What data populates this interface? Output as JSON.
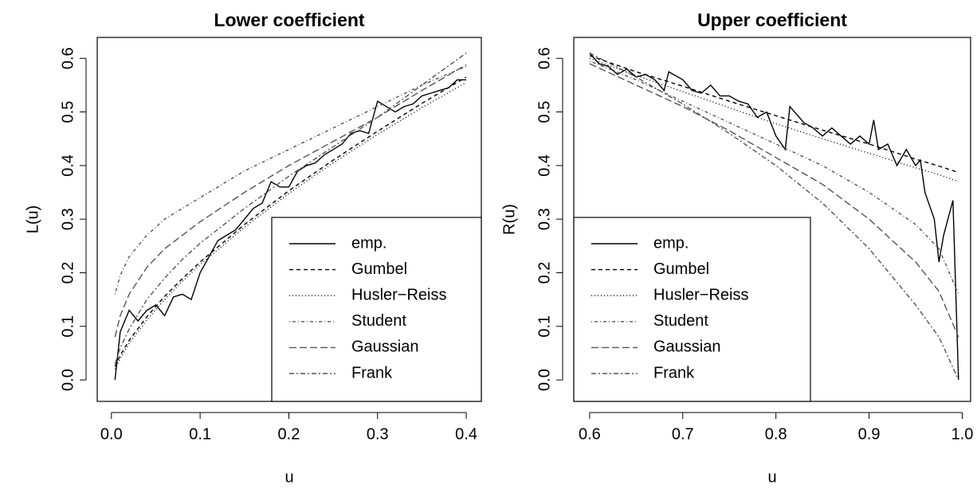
{
  "chart_data": [
    {
      "type": "line",
      "title": "Lower coefficient",
      "x_label": "u",
      "y_label": "L(u)",
      "xlim": [
        -0.016,
        0.417
      ],
      "ylim": [
        -0.04,
        0.639
      ],
      "xticks": [
        {
          "value": 0,
          "label": "0.0"
        },
        0.1,
        0.2,
        0.3,
        0.4
      ],
      "yticks": [
        {
          "value": 0,
          "label": "0.0"
        },
        0.1,
        0.2,
        0.3,
        0.4,
        0.5,
        0.6
      ],
      "legend": "bottomright",
      "series": [
        {
          "name": "emp.",
          "color": "#000000",
          "dash": "none",
          "x": [
            0.004,
            0.01,
            0.02,
            0.03,
            0.04,
            0.05,
            0.06,
            0.07,
            0.08,
            0.09,
            0.1,
            0.11,
            0.12,
            0.13,
            0.14,
            0.15,
            0.16,
            0.17,
            0.18,
            0.19,
            0.2,
            0.21,
            0.22,
            0.23,
            0.24,
            0.25,
            0.26,
            0.27,
            0.28,
            0.29,
            0.3,
            0.31,
            0.32,
            0.33,
            0.34,
            0.35,
            0.36,
            0.37,
            0.38,
            0.39,
            0.4
          ],
          "values": [
            0.0,
            0.09,
            0.13,
            0.11,
            0.13,
            0.14,
            0.12,
            0.155,
            0.16,
            0.15,
            0.2,
            0.23,
            0.26,
            0.27,
            0.28,
            0.3,
            0.32,
            0.33,
            0.37,
            0.36,
            0.36,
            0.39,
            0.4,
            0.405,
            0.42,
            0.43,
            0.44,
            0.46,
            0.465,
            0.46,
            0.52,
            0.51,
            0.5,
            0.51,
            0.515,
            0.53,
            0.535,
            0.54,
            0.545,
            0.56,
            0.56
          ]
        },
        {
          "name": "Gumbel",
          "color": "#000000",
          "dash": "5,4",
          "x": [
            0.004,
            0.01,
            0.02,
            0.04,
            0.06,
            0.08,
            0.1,
            0.15,
            0.2,
            0.25,
            0.3,
            0.35,
            0.4
          ],
          "values": [
            0.025,
            0.046,
            0.074,
            0.118,
            0.156,
            0.189,
            0.22,
            0.29,
            0.353,
            0.41,
            0.464,
            0.516,
            0.565
          ]
        },
        {
          "name": "Husler−Reiss",
          "color": "#000000",
          "dash": "1,3",
          "x": [
            0.004,
            0.01,
            0.02,
            0.04,
            0.06,
            0.08,
            0.1,
            0.15,
            0.2,
            0.25,
            0.3,
            0.35,
            0.4
          ],
          "values": [
            0.02,
            0.04,
            0.068,
            0.112,
            0.15,
            0.184,
            0.215,
            0.285,
            0.348,
            0.405,
            0.458,
            0.508,
            0.555
          ]
        },
        {
          "name": "Student",
          "color": "#555555",
          "dash": "1,3,4,3",
          "x": [
            0.004,
            0.01,
            0.02,
            0.04,
            0.06,
            0.08,
            0.1,
            0.15,
            0.2,
            0.25,
            0.3,
            0.35,
            0.4
          ],
          "values": [
            0.16,
            0.195,
            0.23,
            0.27,
            0.3,
            0.32,
            0.34,
            0.39,
            0.43,
            0.47,
            0.51,
            0.55,
            0.585
          ]
        },
        {
          "name": "Gaussian",
          "color": "#555555",
          "dash": "9,4",
          "x": [
            0.004,
            0.01,
            0.02,
            0.04,
            0.06,
            0.08,
            0.1,
            0.15,
            0.2,
            0.25,
            0.3,
            0.35,
            0.4
          ],
          "values": [
            0.08,
            0.12,
            0.16,
            0.21,
            0.245,
            0.27,
            0.295,
            0.35,
            0.4,
            0.445,
            0.49,
            0.54,
            0.588
          ]
        },
        {
          "name": "Frank",
          "color": "#555555",
          "dash": "6,3,2,3",
          "x": [
            0.004,
            0.01,
            0.02,
            0.04,
            0.06,
            0.08,
            0.1,
            0.15,
            0.2,
            0.25,
            0.3,
            0.35,
            0.4
          ],
          "values": [
            0.03,
            0.06,
            0.095,
            0.15,
            0.19,
            0.225,
            0.255,
            0.32,
            0.38,
            0.435,
            0.49,
            0.55,
            0.61
          ]
        }
      ]
    },
    {
      "type": "line",
      "title": "Upper coefficient",
      "x_label": "u",
      "y_label": "R(u)",
      "xlim": [
        0.583,
        1.009
      ],
      "ylim": [
        -0.04,
        0.639
      ],
      "xticks": [
        0.6,
        0.7,
        0.8,
        0.9,
        {
          "value": 1,
          "label": "1.0"
        }
      ],
      "yticks": [
        {
          "value": 0,
          "label": "0.0"
        },
        0.1,
        0.2,
        0.3,
        0.4,
        0.5,
        0.6
      ],
      "legend": "bottomleft",
      "series": [
        {
          "name": "emp.",
          "color": "#000000",
          "dash": "none",
          "x": [
            0.6,
            0.61,
            0.62,
            0.63,
            0.64,
            0.65,
            0.66,
            0.67,
            0.68,
            0.685,
            0.7,
            0.71,
            0.72,
            0.73,
            0.74,
            0.75,
            0.76,
            0.77,
            0.78,
            0.79,
            0.8,
            0.81,
            0.815,
            0.83,
            0.84,
            0.85,
            0.86,
            0.87,
            0.88,
            0.89,
            0.9,
            0.905,
            0.91,
            0.92,
            0.93,
            0.94,
            0.95,
            0.955,
            0.96,
            0.97,
            0.975,
            0.98,
            0.99,
            0.996
          ],
          "values": [
            0.61,
            0.59,
            0.585,
            0.57,
            0.58,
            0.565,
            0.57,
            0.56,
            0.54,
            0.575,
            0.56,
            0.54,
            0.535,
            0.55,
            0.53,
            0.53,
            0.52,
            0.515,
            0.49,
            0.5,
            0.455,
            0.43,
            0.51,
            0.48,
            0.47,
            0.455,
            0.47,
            0.455,
            0.44,
            0.455,
            0.44,
            0.485,
            0.43,
            0.44,
            0.4,
            0.43,
            0.4,
            0.41,
            0.35,
            0.3,
            0.22,
            0.27,
            0.335,
            0.0
          ]
        },
        {
          "name": "Gumbel",
          "color": "#000000",
          "dash": "5,4",
          "x": [
            0.6,
            0.65,
            0.7,
            0.75,
            0.8,
            0.85,
            0.9,
            0.95,
            0.975,
            0.996
          ],
          "values": [
            0.605,
            0.575,
            0.548,
            0.52,
            0.493,
            0.466,
            0.44,
            0.412,
            0.399,
            0.387
          ]
        },
        {
          "name": "Husler−Reiss",
          "color": "#000000",
          "dash": "1,3",
          "x": [
            0.6,
            0.65,
            0.7,
            0.75,
            0.8,
            0.85,
            0.9,
            0.95,
            0.975,
            0.996
          ],
          "values": [
            0.6,
            0.568,
            0.538,
            0.508,
            0.478,
            0.45,
            0.423,
            0.396,
            0.383,
            0.37
          ]
        },
        {
          "name": "Student",
          "color": "#555555",
          "dash": "1,3,4,3",
          "x": [
            0.6,
            0.65,
            0.7,
            0.75,
            0.8,
            0.85,
            0.9,
            0.95,
            0.975,
            0.996
          ],
          "values": [
            0.595,
            0.56,
            0.52,
            0.48,
            0.44,
            0.4,
            0.35,
            0.29,
            0.245,
            0.16
          ]
        },
        {
          "name": "Gaussian",
          "color": "#555555",
          "dash": "9,4",
          "x": [
            0.6,
            0.65,
            0.7,
            0.75,
            0.8,
            0.85,
            0.9,
            0.95,
            0.975,
            0.996
          ],
          "values": [
            0.59,
            0.55,
            0.51,
            0.465,
            0.415,
            0.365,
            0.3,
            0.22,
            0.165,
            0.08
          ]
        },
        {
          "name": "Frank",
          "color": "#555555",
          "dash": "6,3,2,3",
          "x": [
            0.6,
            0.65,
            0.7,
            0.75,
            0.8,
            0.85,
            0.9,
            0.95,
            0.975,
            0.996
          ],
          "values": [
            0.61,
            0.565,
            0.515,
            0.46,
            0.4,
            0.33,
            0.245,
            0.14,
            0.08,
            0.0
          ]
        }
      ]
    }
  ]
}
